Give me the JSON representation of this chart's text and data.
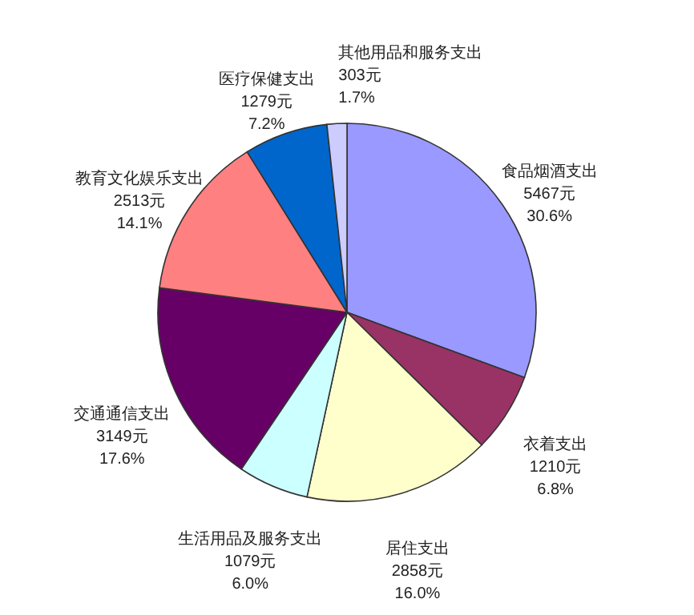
{
  "chart_data": {
    "type": "pie",
    "categories": [
      "食品烟酒支出",
      "衣着支出",
      "居住支出",
      "生活用品及服务支出",
      "交通通信支出",
      "教育文化娱乐支出",
      "医疗保健支出",
      "其他用品和服务支出"
    ],
    "values": [
      5467,
      1210,
      2858,
      1079,
      3149,
      2513,
      1279,
      303
    ],
    "colors": [
      "#9999ff",
      "#993366",
      "#ffffcc",
      "#ccffff",
      "#660066",
      "#ff8080",
      "#0066cc",
      "#ccccff"
    ],
    "value_labels": [
      "5467元\n30.6%",
      "1210元\n6.8%",
      "2858元\n16.0%",
      "1079元\n6.0%",
      "3149元\n17.6%",
      "2513元\n14.1%",
      "1279元\n7.2%",
      "303元\n1.7%"
    ]
  }
}
